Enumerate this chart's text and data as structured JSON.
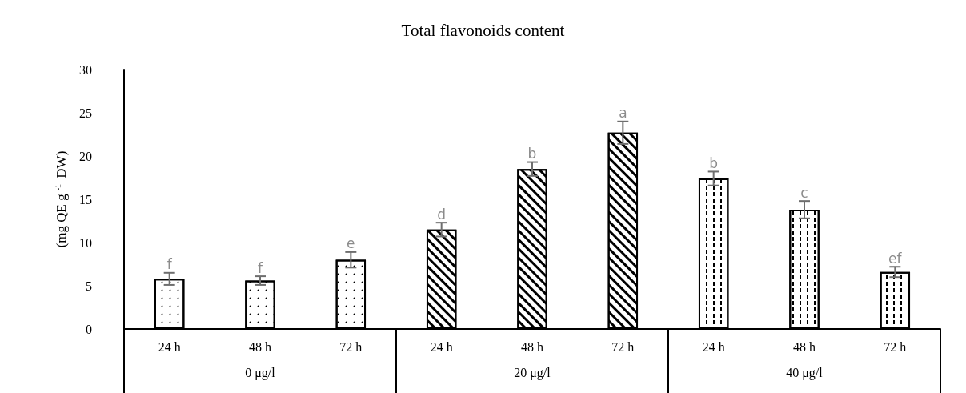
{
  "chart_data": {
    "type": "bar",
    "title": "Total flavonoids content",
    "ylabel": "(mg QE g$^{-1}$ DW)",
    "categories": [
      "24 h",
      "48 h",
      "72 h",
      "24 h",
      "48 h",
      "72 h",
      "24 h",
      "48 h",
      "72 h"
    ],
    "values": [
      5.8,
      5.6,
      8.0,
      11.5,
      18.5,
      22.7,
      17.4,
      13.8,
      6.6
    ],
    "errors": [
      0.7,
      0.5,
      0.9,
      0.8,
      0.8,
      1.3,
      0.8,
      1.0,
      0.6
    ],
    "value_labels": [
      "f",
      "f",
      "e",
      "d",
      "b",
      "a",
      "b",
      "c",
      "ef"
    ],
    "color": "#ffffff",
    "annotations": [
      "0 μg/l",
      "20 μg/l",
      "40 μg/l"
    ],
    "ylim": [
      0,
      30
    ],
    "yticks": [
      0,
      5,
      10,
      15,
      20,
      25,
      30
    ],
    "grid": false
  }
}
